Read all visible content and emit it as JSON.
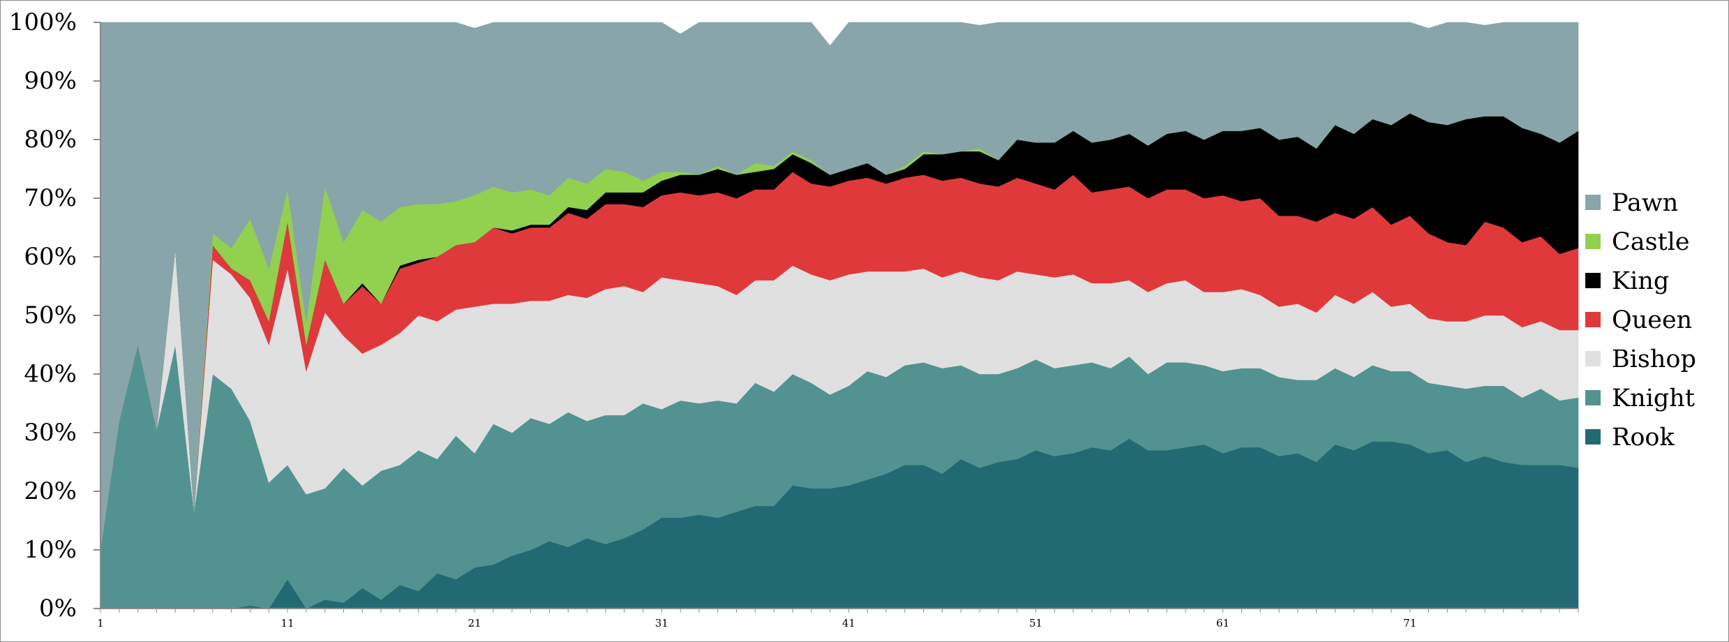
{
  "chart_data": {
    "type": "area",
    "stacked": true,
    "normalized": true,
    "x": [
      1,
      2,
      3,
      4,
      5,
      6,
      7,
      8,
      9,
      10,
      11,
      12,
      13,
      14,
      15,
      16,
      17,
      18,
      19,
      20,
      21,
      22,
      23,
      24,
      25,
      26,
      27,
      28,
      29,
      30,
      31,
      32,
      33,
      34,
      35,
      36,
      37,
      38,
      39,
      40,
      41,
      42,
      43,
      44,
      45,
      46,
      47,
      48,
      49,
      50,
      51,
      52,
      53,
      54,
      55,
      56,
      57,
      58,
      59,
      60,
      61,
      62,
      63,
      64,
      65,
      66,
      67,
      68,
      69,
      70,
      71,
      72,
      73,
      74,
      75,
      76,
      77,
      78,
      79,
      80
    ],
    "x_tick_labels": [
      "1",
      "11",
      "21",
      "31",
      "41",
      "51",
      "61",
      "71"
    ],
    "x_tick_values": [
      1,
      11,
      21,
      31,
      41,
      51,
      61,
      71
    ],
    "ylim": [
      0,
      100
    ],
    "y_tick_labels": [
      "0%",
      "10%",
      "20%",
      "30%",
      "40%",
      "50%",
      "60%",
      "70%",
      "80%",
      "90%",
      "100%"
    ],
    "grid": false,
    "legend_position": "right",
    "series": [
      {
        "name": "Rook",
        "color": "#226a73",
        "values": [
          0,
          0,
          0,
          0,
          0,
          0,
          0,
          0,
          0.5,
          0,
          5,
          0,
          1.5,
          1,
          3.5,
          1.5,
          4,
          3,
          6,
          5,
          7,
          7.5,
          9,
          10,
          11.5,
          10.5,
          12,
          11,
          12,
          13.5,
          15.5,
          15.5,
          16,
          15.5,
          16.5,
          17.5,
          17.5,
          21,
          20.5,
          20.5,
          21,
          22,
          23,
          24.5,
          24.5,
          23,
          25.5,
          24,
          25,
          25.5,
          27,
          26,
          26.5,
          27.5,
          27,
          29,
          27,
          27,
          27.5,
          28,
          26.5,
          27.5,
          27.5,
          26,
          26.5,
          25,
          28,
          27,
          28.5,
          28.5,
          28,
          26.5,
          27,
          25,
          26,
          25,
          24.5,
          24.5,
          24.5,
          24
        ]
      },
      {
        "name": "Knight",
        "color": "#529391",
        "values": [
          10,
          32,
          45,
          30.5,
          45,
          16.5,
          40,
          37.5,
          31.5,
          21.5,
          19.5,
          19.5,
          19,
          23,
          17.5,
          22,
          20.5,
          24,
          19.5,
          24.5,
          19.5,
          24,
          21,
          22.5,
          20,
          23,
          20,
          22,
          21,
          21.5,
          18.5,
          20,
          19,
          20,
          18.5,
          21,
          19.5,
          19,
          18,
          16,
          17,
          18.5,
          16.5,
          17,
          17.5,
          18,
          16,
          16,
          15,
          15.5,
          15.5,
          15,
          15,
          14.5,
          14,
          14,
          13,
          15,
          14.5,
          13.5,
          14,
          13.5,
          13.5,
          13.5,
          12.5,
          14,
          13,
          12.5,
          13,
          12,
          12.5,
          12,
          11,
          12.5,
          12,
          13,
          11.5,
          13,
          11,
          12
        ]
      },
      {
        "name": "Bishop",
        "color": "#e0e0e0",
        "values": [
          0,
          0,
          0,
          0,
          16.5,
          0,
          19.5,
          19.5,
          21,
          23.5,
          33.5,
          21,
          30,
          22.5,
          22.5,
          21.5,
          22.5,
          23,
          23.5,
          21.5,
          25,
          20.5,
          22,
          20,
          21,
          20,
          21,
          21.5,
          22,
          19,
          22.5,
          20.5,
          20.5,
          19.5,
          18.5,
          17.5,
          19,
          18.5,
          18.5,
          19.5,
          19,
          17,
          18,
          16,
          16,
          15.5,
          16,
          16.5,
          16,
          16.5,
          14.5,
          15.5,
          15.5,
          13.5,
          14.5,
          13,
          14,
          13.5,
          14,
          12.5,
          13.5,
          13.5,
          12.5,
          12,
          13,
          11.5,
          12.5,
          12.5,
          12.5,
          11,
          11.5,
          11,
          11,
          11.5,
          12,
          12,
          12,
          11.5,
          12,
          11.5
        ]
      },
      {
        "name": "Queen",
        "color": "#e0393c",
        "values": [
          0,
          0,
          0,
          0,
          0,
          0,
          2.5,
          1,
          3,
          4,
          8,
          4.5,
          9,
          5.5,
          11.5,
          7,
          11,
          9,
          11,
          11,
          11,
          13,
          12,
          12.5,
          12.5,
          14,
          13.5,
          14.5,
          14,
          14.5,
          14,
          15,
          15,
          16,
          16.5,
          15.5,
          15.5,
          16,
          15.5,
          16,
          16,
          16,
          15,
          16,
          16,
          16.5,
          16,
          16,
          16,
          16,
          15.5,
          15,
          17,
          15.5,
          16,
          16,
          16,
          16,
          15.5,
          16,
          16.5,
          15,
          16.5,
          15.5,
          15,
          15.5,
          14,
          14.5,
          14.5,
          14,
          15,
          14.5,
          13.5,
          13,
          16,
          15,
          14.5,
          14.5,
          13,
          14
        ]
      },
      {
        "name": "King",
        "color": "#000000",
        "values": [
          0,
          0,
          0,
          0,
          0,
          0,
          0,
          0,
          0,
          0,
          0,
          0,
          0,
          0,
          0.5,
          0,
          0.5,
          0.5,
          0,
          0,
          0,
          0,
          0.5,
          0.5,
          0.5,
          1,
          1.5,
          2,
          2,
          2.5,
          2.5,
          3,
          3.5,
          4,
          4,
          3,
          3.5,
          3,
          3.5,
          2,
          2,
          2.5,
          1.5,
          1.5,
          3.5,
          4.5,
          4.5,
          5.5,
          4.5,
          6.5,
          7,
          8,
          7.5,
          8.5,
          8.5,
          9,
          9,
          9.5,
          10,
          10,
          11,
          12,
          12,
          13,
          13.5,
          12.5,
          15,
          14.5,
          15,
          17,
          17.5,
          19,
          20,
          21.5,
          18,
          19,
          19.5,
          17.5,
          19,
          20
        ]
      },
      {
        "name": "Castle",
        "color": "#92d050",
        "values": [
          0,
          0,
          0,
          0,
          0,
          0,
          2,
          3.5,
          10.5,
          9,
          5.5,
          4,
          12.5,
          10.5,
          12.5,
          14,
          10,
          9.5,
          9,
          7.5,
          8,
          7,
          6.5,
          6,
          5,
          5,
          4.5,
          4,
          3.5,
          2,
          1.5,
          0.5,
          0,
          0.5,
          0,
          1.5,
          0.5,
          0.5,
          0.5,
          0,
          0,
          0,
          0,
          0.5,
          0.5,
          0,
          0,
          0.5,
          0,
          0,
          0,
          0,
          0,
          0,
          0,
          0,
          0,
          0,
          0,
          0,
          0,
          0,
          0,
          0,
          0,
          0,
          0,
          0,
          0,
          0,
          0,
          0,
          0,
          0,
          0,
          0,
          0,
          0,
          0,
          0
        ]
      },
      {
        "name": "Pawn",
        "color": "#88a5aa",
        "values": [
          90,
          68,
          55,
          69.5,
          38.5,
          83.5,
          36,
          38.5,
          33.5,
          42,
          28.5,
          55,
          28.5,
          37.5,
          32,
          34,
          31.5,
          31,
          31,
          30.5,
          28.5,
          28,
          29,
          28.5,
          29.5,
          27,
          27.5,
          25,
          25.5,
          27,
          25.5,
          23.5,
          26,
          24.5,
          26,
          24,
          24.5,
          22,
          23.5,
          22,
          25,
          24,
          26,
          24.5,
          22,
          22.5,
          22,
          21,
          23.5,
          20,
          20.5,
          20.5,
          19,
          20.5,
          20,
          19,
          21,
          19,
          18.5,
          20,
          18.5,
          18.5,
          18,
          20,
          19.5,
          21.5,
          18,
          19,
          16.5,
          18.5,
          15.5,
          16,
          17.5,
          16.5,
          15.5,
          16,
          18,
          19,
          20.5,
          18.5
        ]
      }
    ]
  }
}
